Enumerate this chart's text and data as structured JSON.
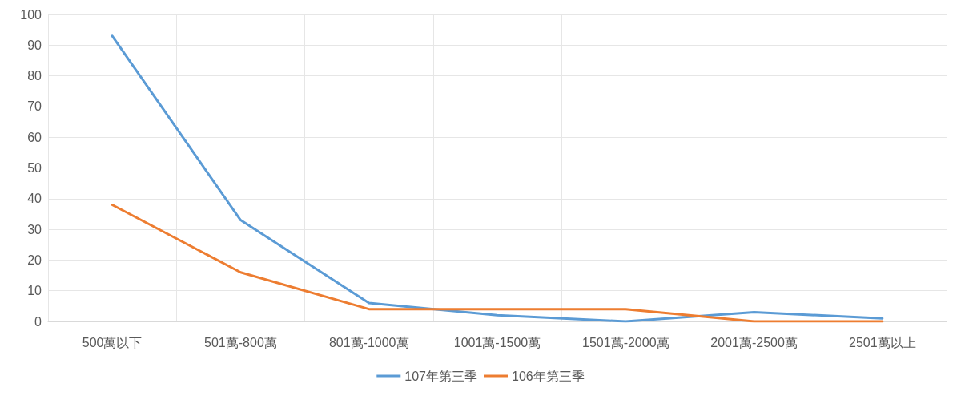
{
  "chart_data": {
    "type": "line",
    "categories": [
      "500萬以下",
      "501萬-800萬",
      "801萬-1000萬",
      "1001萬-1500萬",
      "1501萬-2000萬",
      "2001萬-2500萬",
      "2501萬以上"
    ],
    "series": [
      {
        "name": "107年第三季",
        "color": "#5b9bd5",
        "values": [
          93,
          33,
          6,
          2,
          0,
          3,
          1
        ]
      },
      {
        "name": "106年第三季",
        "color": "#ed7d31",
        "values": [
          38,
          16,
          4,
          4,
          4,
          0,
          0
        ]
      }
    ],
    "ylim": [
      0,
      100
    ],
    "yticks": [
      0,
      10,
      20,
      30,
      40,
      50,
      60,
      70,
      80,
      90,
      100
    ],
    "grid": true,
    "legend": "bottom",
    "marker": "none",
    "line_style": "solid"
  }
}
